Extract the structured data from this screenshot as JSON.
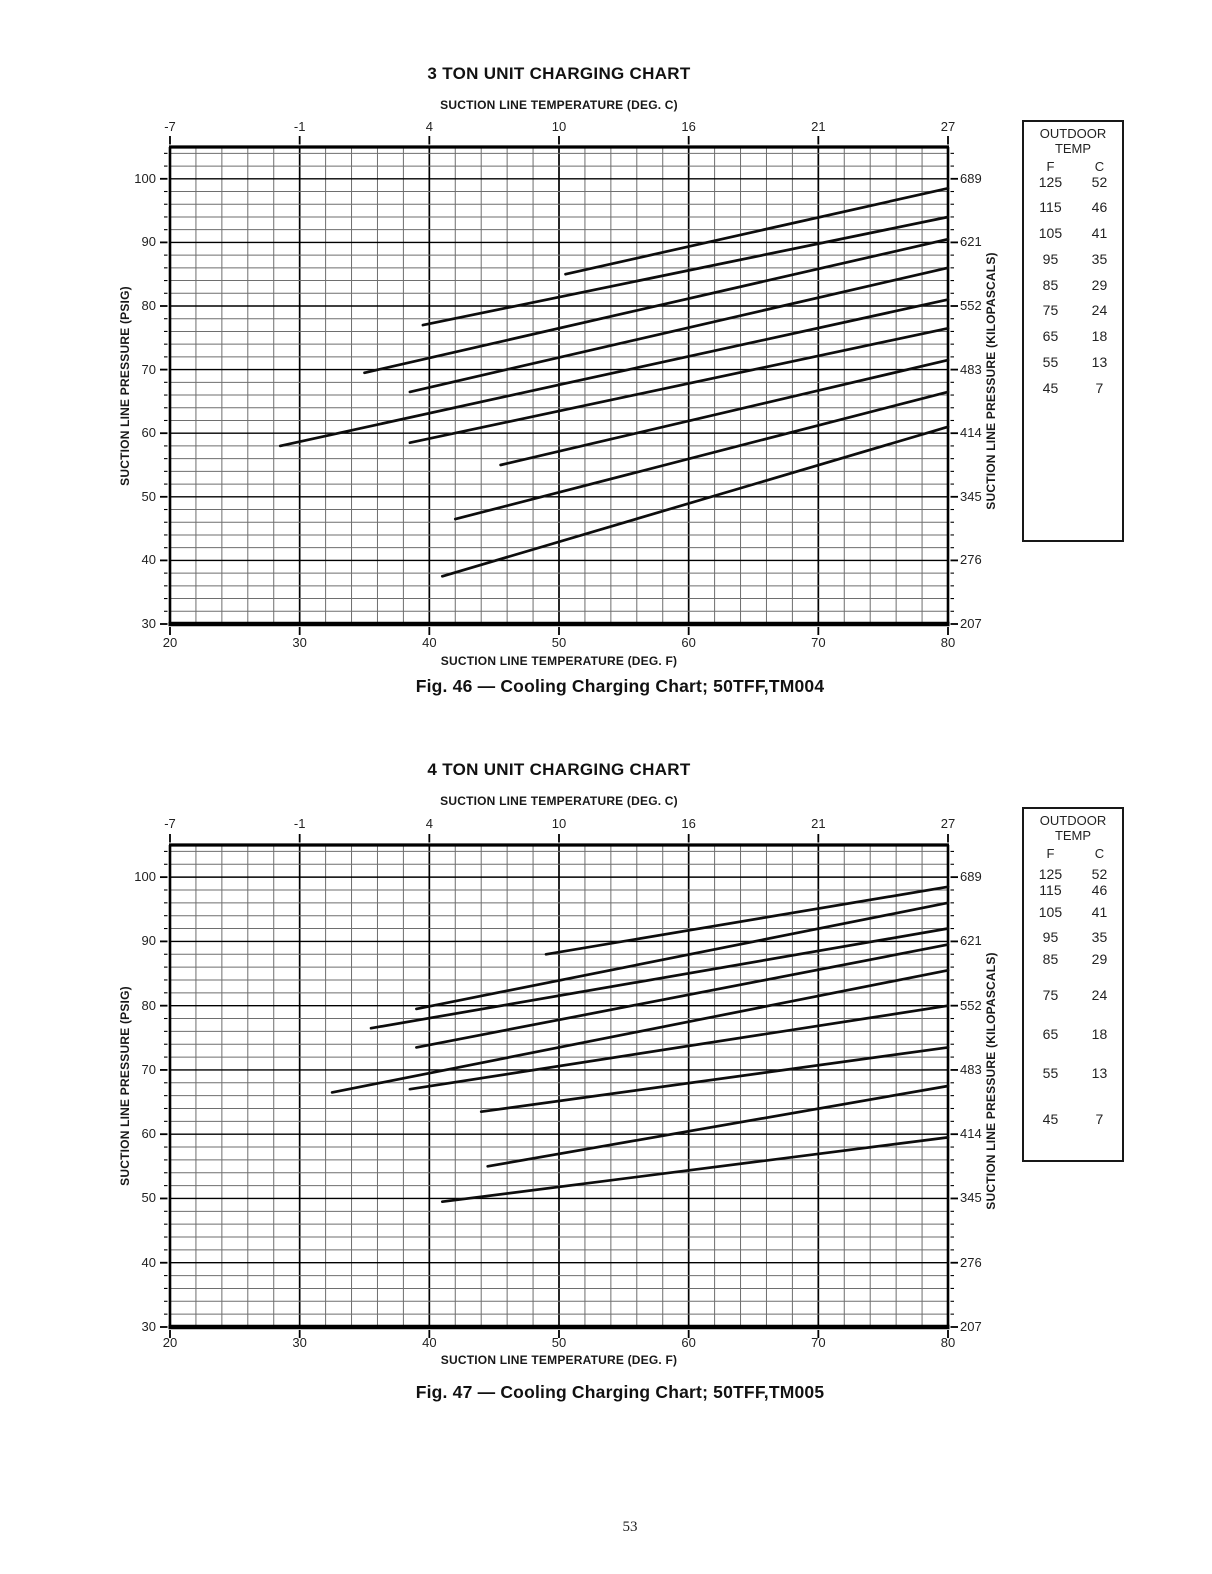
{
  "page": {
    "number": "53"
  },
  "chart_data": [
    {
      "type": "line",
      "title": "3 TON UNIT CHARGING CHART",
      "caption": "Fig. 46 — Cooling Charging Chart; 50TFF,TM004",
      "top_axis": {
        "label": "SUCTION LINE TEMPERATURE (DEG. C)",
        "ticks": [
          "-7",
          "-1",
          "4",
          "10",
          "16",
          "21",
          "27"
        ]
      },
      "bottom_axis": {
        "label": "SUCTION LINE TEMPERATURE (DEG. F)",
        "ticks": [
          "20",
          "30",
          "40",
          "50",
          "60",
          "70",
          "80"
        ]
      },
      "left_axis": {
        "label": "SUCTION LINE PRESSURE (PSIG)",
        "ticks": [
          "100",
          "90",
          "80",
          "70",
          "60",
          "50",
          "40",
          "30"
        ]
      },
      "right_axis": {
        "label": "SUCTION LINE PRESSURE (KILOPASCALS)",
        "ticks": [
          "689",
          "621",
          "552",
          "483",
          "414",
          "345",
          "276",
          "207"
        ]
      },
      "x_range_deg_f": [
        20,
        80
      ],
      "y_range_psig": [
        30,
        105
      ],
      "grid": {
        "minor_step_f": 2,
        "minor_step_psig": 2,
        "major_step_f": 10,
        "major_step_psig": 10
      },
      "line_color": "#0d0d0d",
      "legend": {
        "header_line1": "OUTDOOR",
        "header_line2": "TEMP",
        "columns": [
          "F",
          "C"
        ],
        "rows": [
          [
            "125",
            "52"
          ],
          [
            "115",
            "46"
          ],
          [
            "105",
            "41"
          ],
          [
            "95",
            "35"
          ],
          [
            "85",
            "29"
          ],
          [
            "75",
            "24"
          ],
          [
            "65",
            "18"
          ],
          [
            "55",
            "13"
          ],
          [
            "45",
            "7"
          ]
        ]
      },
      "series": [
        {
          "name": "outdoor-125F",
          "points_f_psig": [
            [
              50.5,
              85.0
            ],
            [
              80,
              98.5
            ]
          ]
        },
        {
          "name": "outdoor-115F",
          "points_f_psig": [
            [
              39.5,
              77.0
            ],
            [
              80,
              94.0
            ]
          ]
        },
        {
          "name": "outdoor-105F",
          "points_f_psig": [
            [
              35.0,
              69.5
            ],
            [
              80,
              90.5
            ]
          ]
        },
        {
          "name": "outdoor-95F",
          "points_f_psig": [
            [
              38.5,
              66.5
            ],
            [
              80,
              86.0
            ]
          ]
        },
        {
          "name": "outdoor-85F",
          "points_f_psig": [
            [
              28.5,
              58.0
            ],
            [
              80,
              81.0
            ]
          ]
        },
        {
          "name": "outdoor-75F",
          "points_f_psig": [
            [
              38.5,
              58.5
            ],
            [
              80,
              76.5
            ]
          ]
        },
        {
          "name": "outdoor-65F",
          "points_f_psig": [
            [
              45.5,
              55.0
            ],
            [
              80,
              71.5
            ]
          ]
        },
        {
          "name": "outdoor-55F",
          "points_f_psig": [
            [
              42.0,
              46.5
            ],
            [
              80,
              66.5
            ]
          ]
        },
        {
          "name": "outdoor-45F",
          "points_f_psig": [
            [
              41.0,
              37.5
            ],
            [
              80,
              61.0
            ]
          ]
        }
      ]
    },
    {
      "type": "line",
      "title": "4 TON UNIT CHARGING CHART",
      "caption": "Fig. 47 — Cooling Charging Chart; 50TFF,TM005",
      "top_axis": {
        "label": "SUCTION LINE TEMPERATURE (DEG. C)",
        "ticks": [
          "-7",
          "-1",
          "4",
          "10",
          "16",
          "21",
          "27"
        ]
      },
      "bottom_axis": {
        "label": "SUCTION LINE TEMPERATURE (DEG. F)",
        "ticks": [
          "20",
          "30",
          "40",
          "50",
          "60",
          "70",
          "80"
        ]
      },
      "left_axis": {
        "label": "SUCTION LINE PRESSURE (PSIG)",
        "ticks": [
          "100",
          "90",
          "80",
          "70",
          "60",
          "50",
          "40",
          "30"
        ]
      },
      "right_axis": {
        "label": "SUCTION LINE PRESSURE (KILOPASCALS)",
        "ticks": [
          "689",
          "621",
          "552",
          "483",
          "414",
          "345",
          "276",
          "207"
        ]
      },
      "x_range_deg_f": [
        20,
        80
      ],
      "y_range_psig": [
        30,
        105
      ],
      "grid": {
        "minor_step_f": 2,
        "minor_step_psig": 2,
        "major_step_f": 10,
        "major_step_psig": 10
      },
      "line_color": "#0d0d0d",
      "legend": {
        "header_line1": "OUTDOOR",
        "header_line2": "TEMP",
        "columns": [
          "F",
          "C"
        ],
        "rows": [
          [
            "125",
            "52"
          ],
          [
            "115",
            "46"
          ],
          [
            "105",
            "41"
          ],
          [
            "95",
            "35"
          ],
          [
            "85",
            "29"
          ],
          [
            "75",
            "24"
          ],
          [
            "65",
            "18"
          ],
          [
            "55",
            "13"
          ],
          [
            "45",
            "7"
          ]
        ]
      },
      "series": [
        {
          "name": "outdoor-125F",
          "points_f_psig": [
            [
              49.0,
              88.0
            ],
            [
              80,
              98.5
            ]
          ]
        },
        {
          "name": "outdoor-115F",
          "points_f_psig": [
            [
              39.0,
              79.5
            ],
            [
              80,
              96.0
            ]
          ]
        },
        {
          "name": "outdoor-105F",
          "points_f_psig": [
            [
              35.5,
              76.5
            ],
            [
              80,
              92.0
            ]
          ]
        },
        {
          "name": "outdoor-95F",
          "points_f_psig": [
            [
              39.0,
              73.5
            ],
            [
              80,
              89.5
            ]
          ]
        },
        {
          "name": "outdoor-85F",
          "points_f_psig": [
            [
              32.5,
              66.5
            ],
            [
              80,
              85.5
            ]
          ]
        },
        {
          "name": "outdoor-75F",
          "points_f_psig": [
            [
              38.5,
              67.0
            ],
            [
              80,
              80.0
            ]
          ]
        },
        {
          "name": "outdoor-65F",
          "points_f_psig": [
            [
              44.0,
              63.5
            ],
            [
              80,
              73.5
            ]
          ]
        },
        {
          "name": "outdoor-55F",
          "points_f_psig": [
            [
              44.5,
              55.0
            ],
            [
              80,
              67.5
            ]
          ]
        },
        {
          "name": "outdoor-45F",
          "points_f_psig": [
            [
              41.0,
              49.5
            ],
            [
              80,
              59.5
            ]
          ]
        }
      ]
    }
  ]
}
